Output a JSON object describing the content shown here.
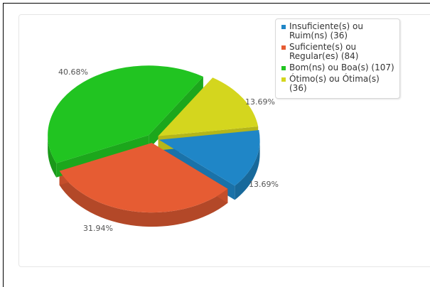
{
  "chart_data": {
    "type": "pie",
    "style": "3d-exploded",
    "title": "",
    "legend_position": "top-right",
    "slices": [
      {
        "name": "Insuficiente(s) ou Ruim(ns)",
        "legend_text": "Insuficiente(s) ou Ruim(ns) (36)",
        "count": 36,
        "percent": 13.69,
        "label": "13.69%",
        "color": "#1f86c7"
      },
      {
        "name": "Suficiente(s) ou Regular(es)",
        "legend_text": "Suficiente(s) ou Regular(es) (84)",
        "count": 84,
        "percent": 31.94,
        "label": "31.94%",
        "color": "#e65c33"
      },
      {
        "name": "Bom(ns) ou Boa(s)",
        "legend_text": "Bom(ns) ou Boa(s) (107)",
        "count": 107,
        "percent": 40.68,
        "label": "40.68%",
        "color": "#21c421"
      },
      {
        "name": "Ótimo(s) ou Ótima(s)",
        "legend_text": "Ótimo(s) ou Ótima(s) (36)",
        "count": 36,
        "percent": 13.69,
        "label": "13.69%",
        "color": "#d4d61e"
      }
    ]
  }
}
